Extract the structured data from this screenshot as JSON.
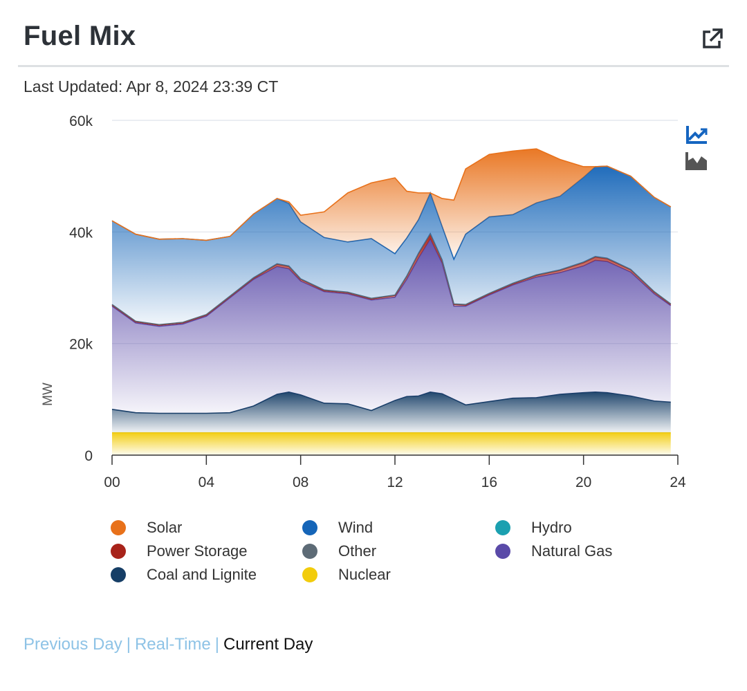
{
  "widget": {
    "title": "Fuel Mix",
    "updated": "Last Updated: Apr 8, 2024 23:39 CT"
  },
  "legend": {
    "items": [
      {
        "label": "Solar",
        "color": "#e8711a"
      },
      {
        "label": "Wind",
        "color": "#1565b8"
      },
      {
        "label": "Hydro",
        "color": "#1ba0b0"
      },
      {
        "label": "Power Storage",
        "color": "#a8231a"
      },
      {
        "label": "Other",
        "color": "#5d6b76"
      },
      {
        "label": "Natural Gas",
        "color": "#5a4aa8"
      },
      {
        "label": "Coal and Lignite",
        "color": "#163e66"
      },
      {
        "label": "Nuclear",
        "color": "#f2cc0c"
      }
    ]
  },
  "footer": {
    "previous_day": "Previous Day",
    "real_time": "Real-Time",
    "current_day": "Current Day",
    "separator": "|"
  },
  "tools": {
    "line_icon": "line-chart-icon",
    "area_icon": "area-chart-icon",
    "external_icon": "external-link-icon"
  },
  "chart_data": {
    "type": "area",
    "stacked": true,
    "title": "Fuel Mix",
    "xlabel": "",
    "ylabel": "MW",
    "xlim": [
      0,
      24
    ],
    "ylim": [
      0,
      60000
    ],
    "x_ticks": [
      "00",
      "04",
      "08",
      "12",
      "16",
      "20",
      "24"
    ],
    "y_ticks": [
      "0",
      "20k",
      "40k",
      "60k"
    ],
    "x": [
      0,
      1,
      2,
      3,
      4,
      5,
      6,
      7,
      7.5,
      8,
      9,
      10,
      11,
      12,
      12.5,
      13,
      13.5,
      14,
      14.5,
      15,
      16,
      17,
      18,
      19,
      20,
      20.5,
      21,
      22,
      23,
      23.7
    ],
    "series": [
      {
        "name": "Nuclear",
        "color": "#f2cc0c",
        "values": [
          4000,
          4000,
          4000,
          4000,
          4000,
          4000,
          4000,
          4000,
          4000,
          4000,
          4000,
          4000,
          4000,
          4000,
          4000,
          4000,
          4000,
          4000,
          4000,
          4000,
          4000,
          4000,
          4000,
          4000,
          4000,
          4000,
          4000,
          4000,
          4000,
          4000
        ]
      },
      {
        "name": "Coal and Lignite",
        "color": "#163e66",
        "values": [
          4200,
          3600,
          3500,
          3500,
          3500,
          3600,
          4800,
          6900,
          7300,
          6800,
          5300,
          5200,
          4000,
          5800,
          6500,
          6600,
          7300,
          7000,
          6000,
          5000,
          5600,
          6200,
          6300,
          6900,
          7200,
          7300,
          7200,
          6600,
          5700,
          5500
        ]
      },
      {
        "name": "Natural Gas",
        "color": "#5a4aa8",
        "values": [
          18500,
          16100,
          15600,
          16000,
          17400,
          20600,
          22700,
          22900,
          22100,
          20400,
          20000,
          19700,
          19800,
          18500,
          21000,
          24700,
          27400,
          23400,
          16700,
          17700,
          19100,
          20300,
          21600,
          21800,
          22700,
          23600,
          23500,
          22200,
          19200,
          17300
        ]
      },
      {
        "name": "Power Storage",
        "color": "#a8231a",
        "values": [
          200,
          200,
          200,
          200,
          200,
          200,
          200,
          400,
          400,
          300,
          200,
          200,
          200,
          300,
          500,
          800,
          900,
          500,
          300,
          200,
          200,
          200,
          300,
          400,
          600,
          600,
          500,
          400,
          300,
          200
        ]
      },
      {
        "name": "Other",
        "color": "#5d6b76",
        "values": [
          100,
          100,
          100,
          100,
          100,
          100,
          100,
          100,
          100,
          100,
          100,
          100,
          100,
          100,
          100,
          100,
          100,
          100,
          100,
          100,
          100,
          100,
          100,
          100,
          100,
          100,
          100,
          100,
          100,
          100
        ]
      },
      {
        "name": "Hydro",
        "color": "#1ba0b0",
        "values": [
          0,
          0,
          0,
          0,
          0,
          0,
          0,
          0,
          0,
          0,
          0,
          0,
          0,
          0,
          0,
          0,
          0,
          0,
          0,
          0,
          0,
          0,
          0,
          0,
          0,
          0,
          0,
          0,
          0,
          0
        ]
      },
      {
        "name": "Wind",
        "color": "#1565b8",
        "values": [
          15000,
          15600,
          15300,
          15000,
          13300,
          10700,
          11400,
          11700,
          11200,
          10200,
          9400,
          9000,
          10700,
          7400,
          6800,
          6000,
          7300,
          6000,
          8000,
          12600,
          13700,
          12300,
          12900,
          13200,
          15200,
          16100,
          16500,
          16700,
          16900,
          17400
        ]
      },
      {
        "name": "Solar",
        "color": "#e8711a",
        "values": [
          0,
          0,
          0,
          0,
          0,
          0,
          0,
          0,
          300,
          1200,
          4600,
          8800,
          10000,
          13600,
          8400,
          4800,
          0,
          5000,
          10600,
          11700,
          11200,
          11400,
          9700,
          6600,
          1900,
          0,
          0,
          0,
          0,
          0
        ]
      }
    ]
  }
}
